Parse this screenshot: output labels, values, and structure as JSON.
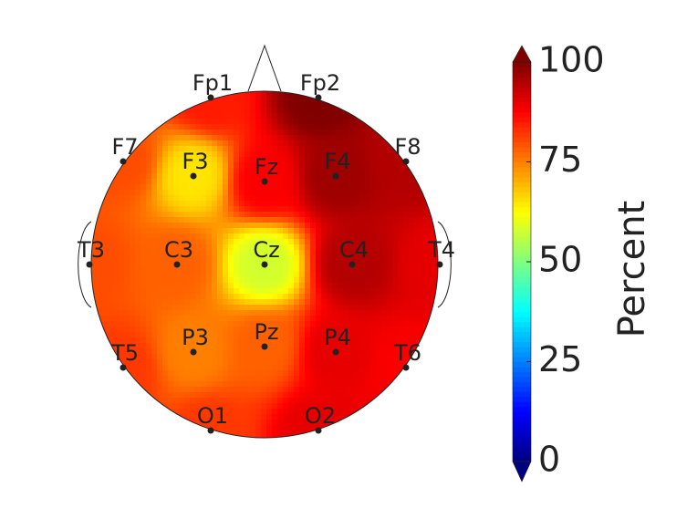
{
  "chart_data": {
    "type": "topomap",
    "electrodes": [
      "Fp1",
      "Fp2",
      "F7",
      "F3",
      "Fz",
      "F4",
      "F8",
      "T3",
      "C3",
      "Cz",
      "C4",
      "T4",
      "T5",
      "P3",
      "Pz",
      "P4",
      "T6",
      "O1",
      "O2"
    ],
    "values": [
      85,
      100,
      80,
      65,
      88,
      97,
      95,
      80,
      78,
      58,
      95,
      90,
      82,
      75,
      78,
      90,
      88,
      82,
      90
    ],
    "colormap": "jet",
    "clim": [
      0,
      100
    ],
    "cticks": [
      0,
      25,
      50,
      75,
      100
    ],
    "colorbar_label": "Percent"
  }
}
